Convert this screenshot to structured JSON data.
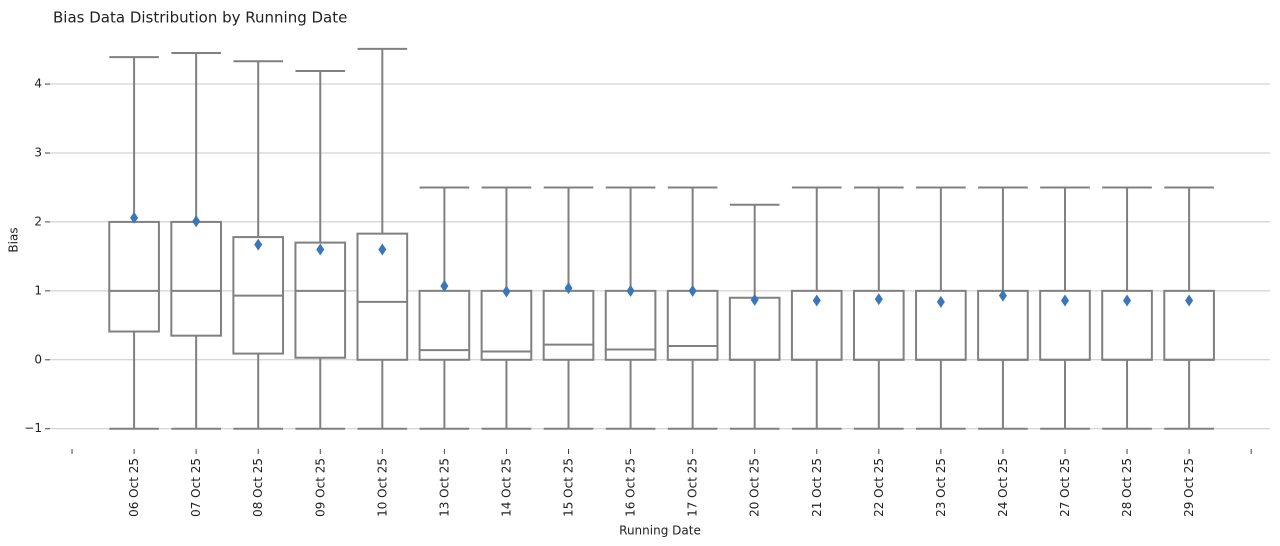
{
  "chart_data": {
    "type": "box",
    "title": "Bias Data Distribution by Running Date",
    "x_label": "Running Date",
    "y_label": "Bias",
    "categories": [
      null,
      "06 Oct 25",
      "07 Oct 25",
      "08 Oct 25",
      "09 Oct 25",
      "10 Oct 25",
      "13 Oct 25",
      "14 Oct 25",
      "15 Oct 25",
      "16 Oct 25",
      "17 Oct 25",
      "20 Oct 25",
      "21 Oct 25",
      "22 Oct 25",
      "23 Oct 25",
      "24 Oct 25",
      "27 Oct 25",
      "28 Oct 25",
      "29 Oct 25",
      null
    ],
    "whisker_low": [
      null,
      -1,
      -1,
      -1,
      -1,
      -1,
      -1,
      -1,
      -1,
      -1,
      -1,
      -1,
      -1,
      -1,
      -1,
      -1,
      -1,
      -1,
      -1,
      null
    ],
    "q1": [
      null,
      0.41,
      0.35,
      0.09,
      0.03,
      0,
      0,
      0,
      0,
      0,
      0,
      0,
      0,
      0,
      0,
      0,
      0,
      0,
      0,
      null
    ],
    "median": [
      null,
      1.0,
      1.0,
      0.93,
      1.0,
      0.84,
      0.14,
      0.12,
      0.22,
      0.15,
      0.2,
      0,
      0,
      0,
      0,
      0,
      0,
      0,
      0,
      null
    ],
    "q3": [
      null,
      2.0,
      2.0,
      1.78,
      1.7,
      1.83,
      1,
      1,
      1,
      1,
      1,
      0.9,
      1,
      1,
      1,
      1,
      1,
      1,
      1,
      null
    ],
    "whisker_high": [
      null,
      4.39,
      4.45,
      4.33,
      4.19,
      4.51,
      2.5,
      2.5,
      2.5,
      2.5,
      2.5,
      2.25,
      2.5,
      2.5,
      2.5,
      2.5,
      2.5,
      2.5,
      2.5,
      null
    ],
    "mean": [
      null,
      2.06,
      2.01,
      1.67,
      1.6,
      1.6,
      1.07,
      0.99,
      1.04,
      1.0,
      1.0,
      0.87,
      0.86,
      0.88,
      0.84,
      0.93,
      0.86,
      0.86,
      0.86,
      null
    ],
    "box_color": "#808080",
    "mean_color": "#3a76b8",
    "ylim": [
      -1.12,
      4.61
    ],
    "yticks": [
      {
        "value": -1,
        "label": "−1"
      },
      0,
      1,
      2,
      3,
      4
    ],
    "grid": true
  }
}
